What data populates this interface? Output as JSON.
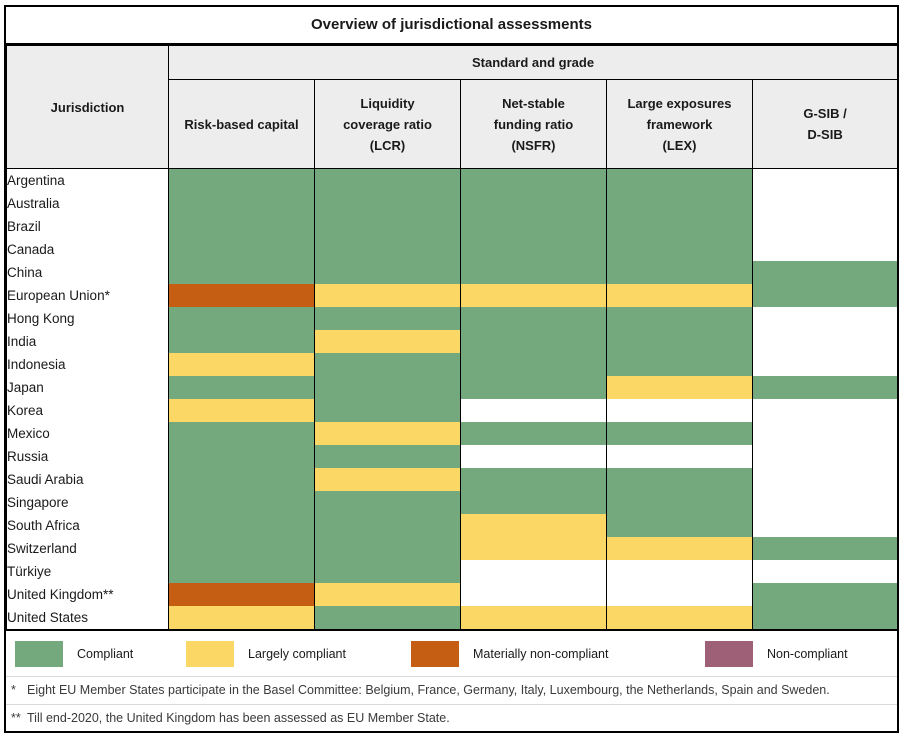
{
  "title": "Overview of jurisdictional assessments",
  "header": {
    "jurisdiction_label": "Jurisdiction",
    "group_label": "Standard and grade",
    "columns": [
      {
        "id": "rbc",
        "label": "Risk-based capital"
      },
      {
        "id": "lcr",
        "label": "Liquidity\ncoverage ratio\n(LCR)"
      },
      {
        "id": "nsfr",
        "label": "Net-stable\nfunding ratio\n(NSFR)"
      },
      {
        "id": "lex",
        "label": "Large exposures\nframework\n(LEX)"
      },
      {
        "id": "gsib",
        "label": "G-SIB /\nD-SIB"
      }
    ]
  },
  "legend": {
    "items": [
      {
        "code": "C",
        "label": "Compliant",
        "color": "#74a97d"
      },
      {
        "code": "LC",
        "label": "Largely compliant",
        "color": "#fbd765"
      },
      {
        "code": "MNC",
        "label": "Materially non-compliant",
        "color": "#c55d13"
      },
      {
        "code": "NC",
        "label": "Non-compliant",
        "color": "#9e6076"
      }
    ]
  },
  "footnotes": [
    {
      "marker": "*",
      "text": "Eight EU Member States participate in the Basel Committee: Belgium, France, Germany, Italy, Luxembourg, the Netherlands, Spain and Sweden."
    },
    {
      "marker": "**",
      "text": "Till end-2020, the United Kingdom has been assessed as EU Member State."
    }
  ],
  "colors": {
    "compliant": "#74a97d",
    "largely_compliant": "#fbd765",
    "materially_non_compliant": "#c55d13",
    "non_compliant": "#9e6076",
    "header_bg": "#ededed",
    "border": "#000000"
  },
  "chart_data": {
    "type": "heatmap",
    "title": "Overview of jurisdictional assessments",
    "column_group": "Standard and grade",
    "columns": [
      "Risk-based capital",
      "Liquidity coverage ratio (LCR)",
      "Net-stable funding ratio (NSFR)",
      "Large exposures framework (LEX)",
      "G-SIB / D-SIB"
    ],
    "grade_codes": {
      "C": "Compliant",
      "LC": "Largely compliant",
      "MNC": "Materially non-compliant",
      "NC": "Non-compliant",
      "blank": "no grade shown"
    },
    "rows": [
      {
        "jurisdiction": "Argentina",
        "grades": [
          "C",
          "C",
          "C",
          "C",
          "blank"
        ]
      },
      {
        "jurisdiction": "Australia",
        "grades": [
          "C",
          "C",
          "C",
          "C",
          "blank"
        ]
      },
      {
        "jurisdiction": "Brazil",
        "grades": [
          "C",
          "C",
          "C",
          "C",
          "blank"
        ]
      },
      {
        "jurisdiction": "Canada",
        "grades": [
          "C",
          "C",
          "C",
          "C",
          "blank"
        ]
      },
      {
        "jurisdiction": "China",
        "grades": [
          "C",
          "C",
          "C",
          "C",
          "C"
        ]
      },
      {
        "jurisdiction": "European Union*",
        "grades": [
          "MNC",
          "LC",
          "LC",
          "LC",
          "C"
        ]
      },
      {
        "jurisdiction": "Hong Kong",
        "grades": [
          "C",
          "C",
          "C",
          "C",
          "blank"
        ]
      },
      {
        "jurisdiction": "India",
        "grades": [
          "C",
          "LC",
          "C",
          "C",
          "blank"
        ]
      },
      {
        "jurisdiction": "Indonesia",
        "grades": [
          "LC",
          "C",
          "C",
          "C",
          "blank"
        ]
      },
      {
        "jurisdiction": "Japan",
        "grades": [
          "C",
          "C",
          "C",
          "LC",
          "C"
        ]
      },
      {
        "jurisdiction": "Korea",
        "grades": [
          "LC",
          "C",
          "blank",
          "blank",
          "blank"
        ]
      },
      {
        "jurisdiction": "Mexico",
        "grades": [
          "C",
          "LC",
          "C",
          "C",
          "blank"
        ]
      },
      {
        "jurisdiction": "Russia",
        "grades": [
          "C",
          "C",
          "blank",
          "blank",
          "blank"
        ]
      },
      {
        "jurisdiction": "Saudi Arabia",
        "grades": [
          "C",
          "LC",
          "C",
          "C",
          "blank"
        ]
      },
      {
        "jurisdiction": "Singapore",
        "grades": [
          "C",
          "C",
          "C",
          "C",
          "blank"
        ]
      },
      {
        "jurisdiction": "South Africa",
        "grades": [
          "C",
          "C",
          "LC",
          "C",
          "blank"
        ]
      },
      {
        "jurisdiction": "Switzerland",
        "grades": [
          "C",
          "C",
          "LC",
          "LC",
          "C"
        ]
      },
      {
        "jurisdiction": "Türkiye",
        "grades": [
          "C",
          "C",
          "blank",
          "blank",
          "blank"
        ]
      },
      {
        "jurisdiction": "United Kingdom**",
        "grades": [
          "MNC",
          "LC",
          "blank",
          "blank",
          "C"
        ]
      },
      {
        "jurisdiction": "United States",
        "grades": [
          "LC",
          "C",
          "LC",
          "LC",
          "C"
        ]
      }
    ]
  }
}
